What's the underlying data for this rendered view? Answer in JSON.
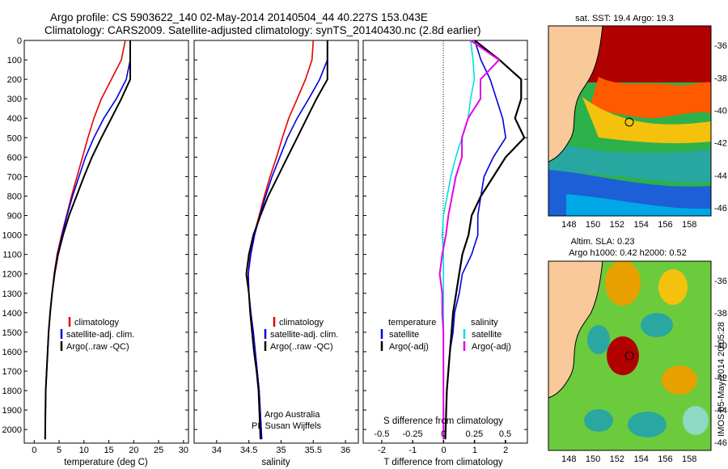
{
  "header": {
    "line1": "Argo profile: CS 5903622_140 02-May-2014 20140504_44 40.227S 153.043E",
    "line2": "Climatology: CARS2009. Satellite-adjusted climatology: synTS_20140430.nc (2.8d earlier)"
  },
  "colors": {
    "climatology": "#e60000",
    "satellite": "#0000e0",
    "argo": "#000000",
    "sat_salinity": "#00e0e0",
    "argo_salinity": "#e600e6",
    "land": "#f9c99a"
  },
  "panels": {
    "temp": {
      "xlabel": "temperature (deg C)",
      "xticks": [
        "0",
        "5",
        "10",
        "15",
        "20",
        "25",
        "30"
      ],
      "legend": [
        "climatology",
        "satellite-adj. clim.",
        "Argo(..raw -QC)"
      ]
    },
    "sal": {
      "xlabel": "salinity",
      "xticks": [
        "34",
        "34.5",
        "35",
        "35.5",
        "36"
      ],
      "legend": [
        "climatology",
        "satellite-adj. clim.",
        "Argo(..raw -QC)"
      ],
      "credit1": "Argo Australia",
      "credit2": "PI: Susan Wijffels"
    },
    "diff": {
      "xlabel": "T difference from climatology",
      "toplabel": "S difference from climatology",
      "xticks": [
        "-2",
        "-1",
        "0",
        "1",
        "2"
      ],
      "sticks": [
        "-0.5",
        "-0.25",
        "0",
        "0.25",
        "0.5"
      ],
      "legend_t_title": "temperature",
      "legend_t": [
        "satellite",
        "Argo(-adj)"
      ],
      "legend_s_title": "salinity",
      "legend_s": [
        "satellite",
        "Argo(-adj)"
      ]
    },
    "map1": {
      "title": "sat. SST: 19.4 Argo: 19.3",
      "xticks": [
        "148",
        "150",
        "152",
        "154",
        "156",
        "158"
      ],
      "yticks": [
        "-36",
        "-38",
        "-40",
        "-42",
        "-44",
        "-46"
      ]
    },
    "map2": {
      "title1": "Altim. SLA: 0.23",
      "title2": "Argo h1000: 0.42 h2000: 0.52",
      "xticks": [
        "148",
        "150",
        "152",
        "154",
        "156",
        "158"
      ],
      "yticks": [
        "-36",
        "-38",
        "-40",
        "-42",
        "-44",
        "-46"
      ]
    }
  },
  "yticks": [
    "0",
    "100",
    "200",
    "300",
    "400",
    "500",
    "600",
    "700",
    "800",
    "900",
    "1000",
    "1100",
    "1200",
    "1300",
    "1400",
    "1500",
    "1600",
    "1700",
    "1800",
    "1900",
    "2000"
  ],
  "stamp": "IMOS 05-May-2014 20:05:28",
  "chart_data": [
    {
      "type": "line",
      "title": "",
      "xlabel": "temperature (deg C)",
      "ylabel": "",
      "xlim": [
        -2,
        31
      ],
      "ylim": [
        2070,
        0
      ],
      "series": [
        {
          "name": "climatology",
          "x": [
            18.3,
            17.5,
            15.5,
            13.5,
            12.0,
            10.8,
            9.7,
            8.6,
            7.5,
            6.5,
            5.5,
            4.6,
            4.0,
            3.6,
            3.2,
            2.9,
            2.7,
            2.5,
            2.3,
            2.2
          ],
          "y": [
            0,
            100,
            200,
            300,
            400,
            500,
            600,
            700,
            800,
            900,
            1000,
            1100,
            1200,
            1300,
            1400,
            1500,
            1600,
            1700,
            1800,
            2050
          ]
        },
        {
          "name": "satellite-adj. clim.",
          "x": [
            19.3,
            19.3,
            18.5,
            16.5,
            14.0,
            12.0,
            10.3,
            9.0,
            7.7,
            6.6,
            5.6,
            4.7,
            4.1,
            3.6,
            3.2,
            2.9,
            2.7,
            2.5,
            2.3,
            2.2
          ],
          "y": [
            0,
            100,
            200,
            300,
            400,
            500,
            600,
            700,
            800,
            900,
            1000,
            1100,
            1200,
            1300,
            1400,
            1500,
            1600,
            1700,
            1800,
            2050
          ]
        },
        {
          "name": "Argo(..raw -QC)",
          "x": [
            19.3,
            19.3,
            19.3,
            17.5,
            15.5,
            13.5,
            11.6,
            10.0,
            8.5,
            7.0,
            5.8,
            4.8,
            4.1,
            3.6,
            3.2,
            2.9,
            2.7,
            2.5,
            2.3,
            2.2
          ],
          "y": [
            0,
            100,
            200,
            300,
            400,
            500,
            600,
            700,
            800,
            900,
            1000,
            1100,
            1200,
            1300,
            1400,
            1500,
            1600,
            1700,
            1800,
            2050
          ]
        }
      ]
    },
    {
      "type": "line",
      "title": "",
      "xlabel": "salinity",
      "ylabel": "",
      "xlim": [
        33.65,
        36.2
      ],
      "ylim": [
        2070,
        0
      ],
      "series": [
        {
          "name": "climatology",
          "x": [
            35.5,
            35.48,
            35.38,
            35.25,
            35.12,
            35.02,
            34.93,
            34.83,
            34.74,
            34.66,
            34.58,
            34.52,
            34.49,
            34.5,
            34.53,
            34.57,
            34.6,
            34.63,
            34.66,
            34.7
          ],
          "y": [
            0,
            100,
            200,
            300,
            400,
            500,
            600,
            700,
            800,
            900,
            1000,
            1100,
            1200,
            1300,
            1400,
            1500,
            1600,
            1700,
            1800,
            2050
          ]
        },
        {
          "name": "satellite-adj. clim.",
          "x": [
            35.72,
            35.72,
            35.6,
            35.43,
            35.25,
            35.1,
            34.98,
            34.86,
            34.76,
            34.67,
            34.59,
            34.53,
            34.49,
            34.5,
            34.53,
            34.57,
            34.6,
            34.63,
            34.66,
            34.7
          ],
          "y": [
            0,
            100,
            200,
            300,
            400,
            500,
            600,
            700,
            800,
            900,
            1000,
            1100,
            1200,
            1300,
            1400,
            1500,
            1600,
            1700,
            1800,
            2050
          ]
        },
        {
          "name": "Argo(..raw -QC)",
          "x": [
            35.72,
            35.72,
            35.72,
            35.55,
            35.4,
            35.25,
            35.1,
            34.95,
            34.8,
            34.68,
            34.57,
            34.5,
            34.46,
            34.5,
            34.52,
            34.55,
            34.58,
            34.62,
            34.65,
            34.68
          ],
          "y": [
            0,
            100,
            200,
            300,
            400,
            500,
            600,
            700,
            800,
            900,
            1000,
            1100,
            1200,
            1300,
            1400,
            1500,
            1600,
            1700,
            1800,
            2050
          ]
        }
      ]
    },
    {
      "type": "line",
      "title": "",
      "xlabel": "T difference from climatology",
      "ylabel": "",
      "xlim": [
        -2.6,
        2.7
      ],
      "ylim": [
        2070,
        0
      ],
      "series": [
        {
          "name": "temperature satellite",
          "x": [
            1.0,
            1.2,
            1.5,
            1.7,
            1.9,
            2.0,
            1.6,
            1.3,
            1.2,
            1.1,
            1.1,
            0.9,
            0.6,
            0.5,
            0.35,
            0.3,
            0.2,
            0.15,
            0.1,
            0.05
          ],
          "y": [
            0,
            100,
            200,
            300,
            400,
            500,
            600,
            700,
            800,
            900,
            1000,
            1100,
            1200,
            1300,
            1400,
            1500,
            1600,
            1700,
            1800,
            2050
          ]
        },
        {
          "name": "temperature Argo(-adj)",
          "x": [
            1.0,
            1.8,
            2.5,
            2.5,
            2.3,
            2.6,
            2.0,
            1.6,
            1.2,
            0.9,
            0.8,
            0.6,
            0.5,
            0.4,
            0.3,
            0.25,
            0.2,
            0.15,
            0.1,
            0.05
          ],
          "y": [
            0,
            100,
            200,
            300,
            400,
            500,
            600,
            700,
            800,
            900,
            1000,
            1100,
            1200,
            1300,
            1400,
            1500,
            1600,
            1700,
            1800,
            2050
          ]
        }
      ]
    },
    {
      "type": "line",
      "title": "",
      "xlabel": "S difference from climatology",
      "ylabel": "",
      "xlim": [
        -0.65,
        0.68
      ],
      "ylim": [
        2070,
        0
      ],
      "series": [
        {
          "name": "salinity satellite",
          "x": [
            0.22,
            0.24,
            0.25,
            0.22,
            0.2,
            0.15,
            0.1,
            0.06,
            0.03,
            0.0,
            -0.01,
            0.0,
            0.0,
            0.0,
            0.0,
            0.0,
            0.0,
            0.0,
            0.0,
            0.0
          ],
          "y": [
            0,
            100,
            200,
            300,
            400,
            500,
            600,
            700,
            800,
            900,
            1000,
            1100,
            1200,
            1300,
            1400,
            1500,
            1600,
            1700,
            1800,
            2050
          ]
        },
        {
          "name": "salinity Argo(-adj)",
          "x": [
            0.22,
            0.45,
            0.3,
            0.3,
            0.2,
            0.15,
            0.15,
            0.1,
            0.07,
            0.04,
            0.02,
            -0.01,
            -0.03,
            -0.01,
            -0.01,
            0.0,
            0.0,
            0.0,
            0.0,
            0.0
          ],
          "y": [
            0,
            100,
            200,
            300,
            400,
            500,
            600,
            700,
            800,
            900,
            1000,
            1100,
            1200,
            1300,
            1400,
            1500,
            1600,
            1700,
            1800,
            2050
          ]
        }
      ]
    }
  ]
}
